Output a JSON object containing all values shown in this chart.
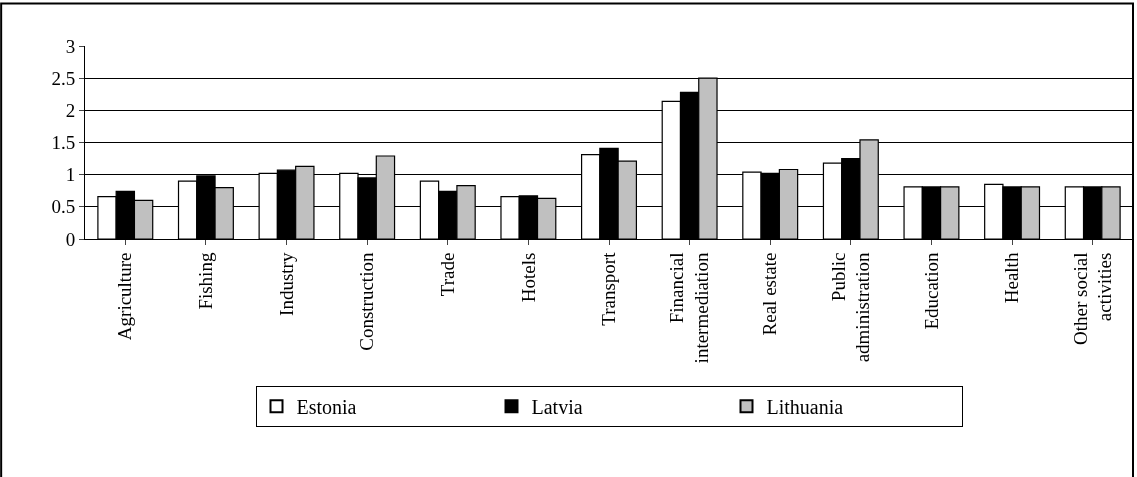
{
  "chart_data": {
    "type": "bar",
    "categories": [
      "Agriculture",
      "Fishing",
      "Industry",
      "Construction",
      "Trade",
      "Hotels",
      "Transport",
      "Financial\nintermediation",
      "Real estate",
      "Public\nadministration",
      "Education",
      "Health",
      "Other social\nactivities"
    ],
    "series": [
      {
        "name": "Estonia",
        "color": "#ffffff",
        "values": [
          0.66,
          0.9,
          1.02,
          1.02,
          0.9,
          0.66,
          1.31,
          2.14,
          1.04,
          1.18,
          0.81,
          0.85,
          0.81
        ]
      },
      {
        "name": "Latvia",
        "color": "#000000",
        "values": [
          0.74,
          0.98,
          1.07,
          0.95,
          0.74,
          0.67,
          1.41,
          2.28,
          1.02,
          1.25,
          0.81,
          0.81,
          0.81
        ]
      },
      {
        "name": "Lithuania",
        "color": "#c0c0c0",
        "values": [
          0.6,
          0.8,
          1.13,
          1.29,
          0.83,
          0.63,
          1.21,
          2.5,
          1.08,
          1.54,
          0.81,
          0.81,
          0.81
        ]
      }
    ],
    "ylim": [
      0,
      3
    ],
    "yticks": [
      0,
      0.5,
      1,
      1.5,
      2,
      2.5,
      3
    ],
    "grid": "y",
    "legend": "bottom"
  }
}
